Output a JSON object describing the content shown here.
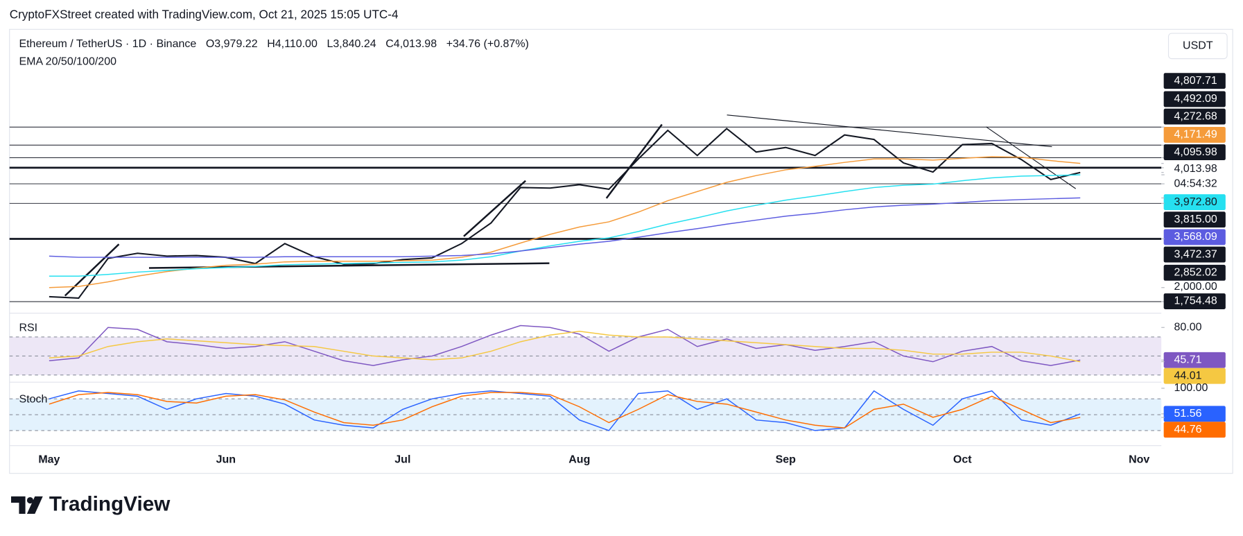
{
  "header": {
    "credit": "CryptoFXStreet created with TradingView.com, Oct 21, 2025 15:05 UTC-4",
    "symbol": "Ethereum / TetherUS · 1D · Binance",
    "ohlc": [
      "O3,979.22",
      "H4,110.00",
      "L3,840.24",
      "C4,013.98",
      "+34.76 (+0.87%)"
    ],
    "indicator": "EMA 20/50/100/200",
    "currency": "USDT"
  },
  "chart_data": [
    {
      "type": "line",
      "categories": [
        "May",
        null,
        null,
        null,
        null,
        null,
        "Jun",
        null,
        null,
        null,
        null,
        null,
        "Jul",
        null,
        null,
        null,
        null,
        null,
        "Aug",
        null,
        null,
        null,
        null,
        null,
        null,
        "Sep",
        null,
        null,
        null,
        null,
        null,
        "Oct",
        null,
        null,
        null,
        null,
        null,
        "Nov"
      ],
      "series": [
        {
          "color": "#131722",
          "values": [
            1840,
            1815,
            2510,
            2600,
            2550,
            2560,
            2530,
            2420,
            2770,
            2540,
            2410,
            2420,
            2490,
            2520,
            2770,
            3130,
            3750,
            3740,
            3800,
            3720,
            4250,
            4750,
            4310,
            4780,
            4370,
            4450,
            4310,
            4670,
            4590,
            4180,
            4020,
            4500,
            4520,
            4240,
            3890,
            4013.98,
            null,
            null
          ]
        },
        {
          "color": "#f59b3a",
          "values": [
            2000,
            2020,
            2100,
            2200,
            2280,
            2340,
            2390,
            2410,
            2450,
            2460,
            2460,
            2460,
            2470,
            2480,
            2530,
            2620,
            2780,
            2930,
            3060,
            3150,
            3320,
            3520,
            3680,
            3840,
            3960,
            4060,
            4120,
            4190,
            4250,
            4250,
            4230,
            4260,
            4290,
            4280,
            4220,
            4171.49,
            null,
            null
          ]
        },
        {
          "color": "#26e0f0",
          "values": [
            2200,
            2200,
            2230,
            2270,
            2300,
            2330,
            2350,
            2370,
            2400,
            2410,
            2420,
            2430,
            2440,
            2450,
            2480,
            2540,
            2640,
            2730,
            2810,
            2870,
            2980,
            3110,
            3220,
            3340,
            3440,
            3530,
            3600,
            3680,
            3750,
            3790,
            3810,
            3870,
            3920,
            3950,
            3960,
            3972.8,
            null,
            null
          ]
        },
        {
          "color": "#5c5ce0",
          "values": [
            2550,
            2530,
            2530,
            2530,
            2530,
            2530,
            2530,
            2530,
            2540,
            2540,
            2540,
            2540,
            2540,
            2550,
            2560,
            2590,
            2640,
            2700,
            2760,
            2810,
            2880,
            2960,
            3030,
            3110,
            3180,
            3250,
            3300,
            3360,
            3410,
            3440,
            3460,
            3490,
            3520,
            3540,
            3555,
            3568.09,
            null,
            null
          ]
        }
      ],
      "ylim": [
        1552,
        5782
      ],
      "yticks": [
        {
          "value": 4807.71,
          "label": "4,807.71"
        },
        {
          "value": 4492.09,
          "label": "4,492.09"
        },
        {
          "value": 4272.68,
          "label": "4,272.68"
        },
        {
          "value": 4171.49,
          "label": "4,171.49"
        },
        {
          "value": 4095.98,
          "label": "4,095.98"
        },
        {
          "value": 4013.98,
          "label": "4,013.98"
        },
        {
          "value": 3972.8,
          "label": "3,972.80"
        },
        {
          "value": 3815.0,
          "label": "3,815.00"
        },
        {
          "value": 3568.09,
          "label": "3,568.09"
        },
        {
          "value": 3472.37,
          "label": "3,472.37"
        },
        {
          "value": 2852.02,
          "label": "2,852.02"
        },
        {
          "value": 2000,
          "label": "2,000.00"
        },
        {
          "value": 1754.48,
          "label": "1,754.48"
        }
      ],
      "countdown": "04:54:32",
      "levels": [
        4807.71,
        4492.09,
        4272.68,
        4095.98,
        3815.0,
        3472.37,
        2852.02,
        1754.48
      ],
      "thick_levels": [
        4095.98,
        2852.02
      ]
    },
    {
      "type": "line",
      "title": "RSI",
      "categories": [
        "May",
        null,
        null,
        null,
        null,
        null,
        "Jun",
        null,
        null,
        null,
        null,
        null,
        "Jul",
        null,
        null,
        null,
        null,
        null,
        "Aug",
        null,
        null,
        null,
        null,
        null,
        null,
        "Sep",
        null,
        null,
        null,
        null,
        null,
        "Oct",
        null,
        null,
        null,
        null,
        null,
        "Nov"
      ],
      "series": [
        {
          "color": "#7e57c2",
          "values": [
            45,
            48,
            80,
            78,
            65,
            62,
            58,
            60,
            65,
            55,
            45,
            40,
            46,
            50,
            60,
            72,
            82,
            80,
            73,
            55,
            70,
            78,
            60,
            68,
            58,
            62,
            56,
            60,
            65,
            50,
            44,
            55,
            60,
            45,
            40,
            45.71,
            null,
            null
          ]
        },
        {
          "color": "#f5c842",
          "values": [
            48,
            50,
            60,
            65,
            68,
            66,
            64,
            62,
            61,
            60,
            55,
            50,
            48,
            46,
            48,
            55,
            65,
            72,
            76,
            72,
            70,
            70,
            68,
            66,
            64,
            62,
            60,
            58,
            58,
            56,
            52,
            52,
            54,
            54,
            50,
            44.01,
            null,
            null
          ]
        }
      ],
      "ylim": [
        25.8,
        92.5
      ],
      "yticks": [
        {
          "value": 80,
          "label": "80.00"
        },
        {
          "value": 45.71,
          "label": "45.71"
        },
        {
          "value": 44.01,
          "label": "44.01"
        }
      ],
      "bands": [
        30,
        50,
        70
      ],
      "band_fill": "#ede7f6"
    },
    {
      "type": "line",
      "title": "Stoch",
      "categories": [
        "May",
        null,
        null,
        null,
        null,
        null,
        "Jun",
        null,
        null,
        null,
        null,
        null,
        "Jul",
        null,
        null,
        null,
        null,
        null,
        "Aug",
        null,
        null,
        null,
        null,
        null,
        null,
        "Sep",
        null,
        null,
        null,
        null,
        null,
        "Oct",
        null,
        null,
        null,
        null,
        null,
        "Nov"
      ],
      "series": [
        {
          "color": "#2962ff",
          "values": [
            80,
            95,
            90,
            85,
            60,
            80,
            90,
            85,
            70,
            40,
            30,
            25,
            60,
            80,
            90,
            95,
            90,
            85,
            40,
            20,
            90,
            95,
            60,
            80,
            40,
            35,
            20,
            25,
            95,
            60,
            30,
            80,
            95,
            40,
            30,
            51.56,
            null,
            null
          ]
        },
        {
          "color": "#ff6d00",
          "values": [
            70,
            88,
            92,
            88,
            75,
            72,
            85,
            88,
            78,
            55,
            35,
            30,
            40,
            65,
            85,
            92,
            92,
            88,
            65,
            35,
            60,
            88,
            75,
            70,
            55,
            40,
            30,
            25,
            60,
            70,
            45,
            60,
            85,
            60,
            35,
            44.76,
            null,
            null
          ]
        }
      ],
      "ylim": [
        -2.5,
        102.5
      ],
      "yticks": [
        {
          "value": 100,
          "label": "100.00"
        },
        {
          "value": 51.56,
          "label": "51.56"
        },
        {
          "value": 44.76,
          "label": "44.76"
        }
      ],
      "bands": [
        20,
        50,
        80
      ],
      "band_fill": "#e3f2fd"
    }
  ],
  "footer": {
    "logo": "TradingView"
  }
}
